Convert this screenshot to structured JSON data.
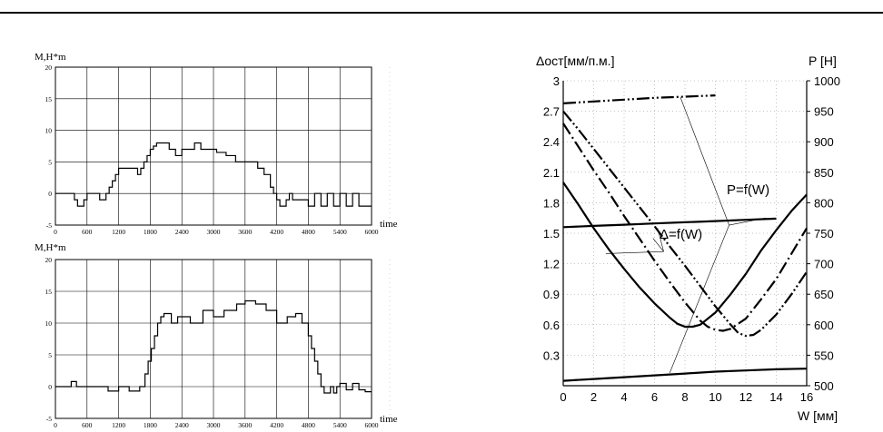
{
  "chart_data": [
    {
      "type": "line",
      "ylabel": "M,H*m",
      "xlabel": "time",
      "xlim": [
        0,
        6000
      ],
      "ylim": [
        -5,
        20
      ],
      "xticks": [
        "0",
        "600",
        "1200",
        "1800",
        "2400",
        "3000",
        "3600",
        "4200",
        "4800",
        "5400",
        "6000"
      ],
      "yticks": [
        "-5",
        "0",
        "5",
        "10",
        "15",
        "20"
      ],
      "grid": true,
      "series": [
        {
          "step": true,
          "x": [
            0,
            300,
            360,
            420,
            480,
            540,
            600,
            660,
            720,
            780,
            840,
            900,
            960,
            1020,
            1080,
            1140,
            1200,
            1380,
            1560,
            1620,
            1680,
            1740,
            1800,
            1860,
            1920,
            2040,
            2160,
            2280,
            2400,
            2520,
            2640,
            2760,
            2880,
            3060,
            3240,
            3420,
            3600,
            3840,
            3960,
            4080,
            4140,
            4200,
            4260,
            4320,
            4380,
            4440,
            4500,
            4800,
            4920,
            5040,
            5160,
            5280,
            5400,
            5520,
            5640,
            5760,
            5880,
            6000
          ],
          "y": [
            0,
            0,
            -1,
            -2,
            -2,
            -1,
            0,
            0,
            0,
            0,
            -1,
            -1,
            0,
            1,
            2,
            3,
            4,
            4,
            3,
            4,
            5,
            6,
            7,
            7.5,
            8,
            8,
            7,
            6,
            7,
            7,
            8,
            7,
            7,
            6.5,
            6,
            5,
            5,
            4,
            3,
            1,
            0,
            -1,
            -2,
            -2,
            -1,
            0,
            -1,
            -2,
            0,
            -2,
            0,
            -2,
            0,
            -2,
            0,
            -2,
            -2,
            -2
          ]
        }
      ]
    },
    {
      "type": "line",
      "ylabel": "M,H*m",
      "xlabel": "time",
      "xlim": [
        0,
        6000
      ],
      "ylim": [
        -5,
        20
      ],
      "xticks": [
        "0",
        "600",
        "1200",
        "1800",
        "2400",
        "3000",
        "3600",
        "4200",
        "4800",
        "5400",
        "6000"
      ],
      "yticks": [
        "-5",
        "0",
        "5",
        "10",
        "15",
        "20"
      ],
      "grid": true,
      "series": [
        {
          "step": true,
          "x": [
            0,
            200,
            300,
            400,
            800,
            900,
            1000,
            1200,
            1400,
            1600,
            1700,
            1760,
            1820,
            1880,
            1940,
            2000,
            2060,
            2120,
            2200,
            2260,
            2320,
            2560,
            2800,
            3000,
            3200,
            3440,
            3600,
            3800,
            4000,
            4200,
            4400,
            4560,
            4680,
            4800,
            4860,
            4920,
            4980,
            5040,
            5100,
            5160,
            5220,
            5280,
            5340,
            5400,
            5520,
            5640,
            5760,
            5880,
            6000
          ],
          "y": [
            0,
            0,
            0.8,
            0,
            0,
            0,
            -0.7,
            0,
            -0.7,
            0,
            2,
            4,
            6,
            8,
            10,
            11,
            11.5,
            11.5,
            10,
            10,
            11,
            10,
            12,
            11,
            12,
            13,
            13.5,
            13,
            12,
            10,
            11,
            11.5,
            10,
            8,
            6,
            4,
            2,
            0,
            -1,
            -1,
            0,
            -1,
            0,
            0.5,
            -0.5,
            0.5,
            -0.5,
            -0.8,
            -0.8
          ]
        }
      ]
    },
    {
      "type": "line",
      "ylabel": "Δост[мм/п.м.]",
      "y2label": "P [H]",
      "xlabel": "W [мм]",
      "xlim": [
        0,
        16
      ],
      "ylim": [
        0,
        3
      ],
      "y2lim": [
        500,
        1000
      ],
      "xticks": [
        "0",
        "2",
        "4",
        "6",
        "8",
        "10",
        "12",
        "14",
        "16"
      ],
      "yticks": [
        "0.3",
        "0.6",
        "0.9",
        "1.2",
        "1.5",
        "1.8",
        "2.1",
        "2.4",
        "2.7",
        "3"
      ],
      "y2ticks": [
        "500",
        "550",
        "600",
        "650",
        "700",
        "750",
        "800",
        "850",
        "900",
        "950",
        "1000"
      ],
      "grid": true,
      "annotations": [
        "P=f(W)",
        "Δ=f(W)"
      ],
      "series": [
        {
          "axis": "y",
          "style": "solid",
          "x": [
            0,
            1,
            2,
            3,
            4,
            5,
            6,
            7,
            7.5,
            8,
            8.5,
            9,
            10,
            11,
            12,
            13,
            14,
            15,
            16
          ],
          "y": [
            2.0,
            1.78,
            1.55,
            1.34,
            1.15,
            0.97,
            0.81,
            0.67,
            0.61,
            0.58,
            0.58,
            0.6,
            0.72,
            0.9,
            1.1,
            1.33,
            1.53,
            1.72,
            1.88
          ]
        },
        {
          "axis": "y",
          "style": "dash-dot",
          "x": [
            0,
            1,
            2,
            3,
            4,
            5,
            6,
            7,
            8,
            9,
            9.5,
            10,
            10.5,
            11,
            12,
            13,
            14,
            15,
            16
          ],
          "y": [
            2.58,
            2.35,
            2.12,
            1.9,
            1.67,
            1.45,
            1.23,
            1.02,
            0.82,
            0.64,
            0.58,
            0.55,
            0.54,
            0.56,
            0.66,
            0.85,
            1.05,
            1.3,
            1.55
          ]
        },
        {
          "axis": "y",
          "style": "dash-dot-dot",
          "x": [
            0,
            1,
            2,
            3,
            4,
            5,
            6,
            7,
            8,
            9,
            10,
            11,
            11.5,
            12,
            12.5,
            13,
            14,
            15,
            16
          ],
          "y": [
            2.7,
            2.52,
            2.33,
            2.14,
            1.95,
            1.76,
            1.57,
            1.37,
            1.18,
            0.98,
            0.78,
            0.6,
            0.52,
            0.49,
            0.5,
            0.55,
            0.7,
            0.9,
            1.12
          ]
        },
        {
          "axis": "y2",
          "style": "solid",
          "x": [
            0,
            2,
            4,
            6,
            8,
            10,
            12,
            14,
            16
          ],
          "y": [
            508,
            511,
            514,
            517,
            520,
            523,
            525,
            527,
            528
          ]
        },
        {
          "axis": "y2",
          "style": "solid",
          "x": [
            0,
            2,
            4,
            6,
            8,
            10,
            12,
            14
          ],
          "y": [
            760,
            762,
            764,
            766,
            768,
            770,
            772,
            774
          ]
        },
        {
          "axis": "y2",
          "style": "dash-dot-dot",
          "x": [
            0,
            2,
            4,
            6,
            8,
            10
          ],
          "y": [
            963,
            966,
            969,
            972,
            974,
            976
          ]
        }
      ]
    }
  ]
}
